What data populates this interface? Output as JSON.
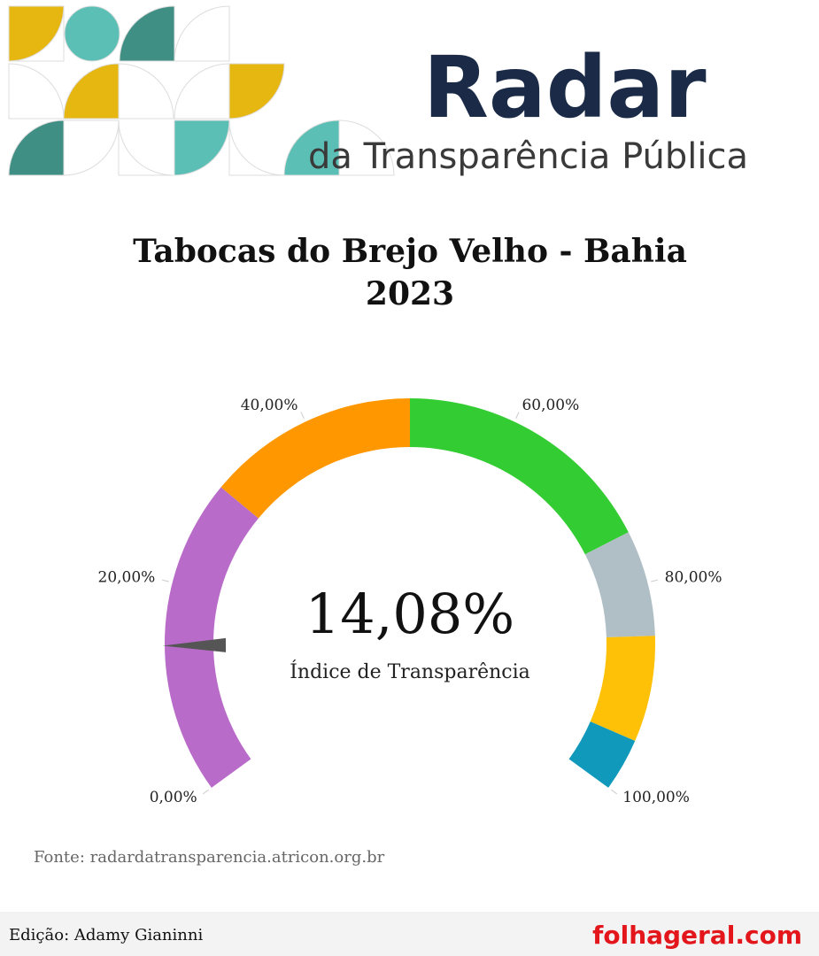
{
  "header": {
    "brand": "Radar",
    "tagline": "da Transparência Pública"
  },
  "chart_data": {
    "type": "gauge",
    "title": "Tabocas do Brejo Velho - Bahia",
    "subtitle": "2023",
    "value": 14.08,
    "value_label": "14,08%",
    "value_caption": "Índice de Transparência",
    "needle_color": "#555555",
    "range": [
      0,
      100
    ],
    "ticks": [
      {
        "value": 0,
        "label": "0,00%"
      },
      {
        "value": 20,
        "label": "20,00%"
      },
      {
        "value": 40,
        "label": "40,00%"
      },
      {
        "value": 60,
        "label": "60,00%"
      },
      {
        "value": 80,
        "label": "80,00%"
      },
      {
        "value": 100,
        "label": "100,00%"
      }
    ],
    "bands": [
      {
        "from": 0,
        "to": 30,
        "color": "#b86bc8"
      },
      {
        "from": 30,
        "to": 50,
        "color": "#ff9800"
      },
      {
        "from": 50,
        "to": 75,
        "color": "#33cc33"
      },
      {
        "from": 75,
        "to": 85,
        "color": "#b0bec5"
      },
      {
        "from": 85,
        "to": 95,
        "color": "#ffc107"
      },
      {
        "from": 95,
        "to": 100,
        "color": "#1199bb"
      }
    ]
  },
  "source": "Fonte: radardatransparencia.atricon.org.br",
  "footer": {
    "credit": "Edição: Adamy Gianinni",
    "site": "folhageral.com"
  }
}
